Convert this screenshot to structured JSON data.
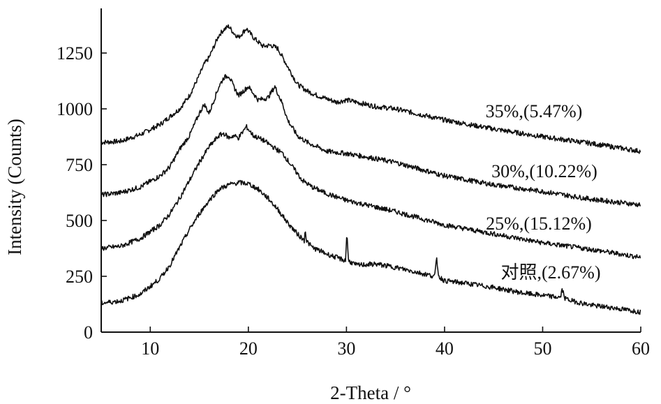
{
  "chart_data": {
    "type": "line",
    "xlabel": "2-Theta / °",
    "ylabel": "Intensity (Counts)",
    "xlim": [
      5,
      60
    ],
    "ylim": [
      0,
      1450
    ],
    "x_ticks": [
      10,
      20,
      30,
      40,
      50,
      60
    ],
    "y_ticks": [
      0,
      250,
      500,
      750,
      1000,
      1250
    ],
    "grid": false,
    "series": [
      {
        "name": "35%,(5.47%)",
        "color": "#111111",
        "x": [
          5,
          7,
          9,
          11,
          13,
          14,
          15,
          15.5,
          16,
          17,
          17.5,
          18,
          18.5,
          19,
          19.8,
          20.5,
          21.5,
          22.3,
          23,
          24,
          25,
          26,
          27,
          28,
          29,
          30,
          31,
          33,
          35,
          40,
          45,
          50,
          55,
          60
        ],
        "y": [
          850,
          855,
          885,
          930,
          1000,
          1060,
          1150,
          1200,
          1230,
          1330,
          1355,
          1370,
          1340,
          1320,
          1360,
          1320,
          1280,
          1285,
          1270,
          1190,
          1110,
          1080,
          1060,
          1045,
          1030,
          1040,
          1030,
          1010,
          1000,
          950,
          910,
          875,
          845,
          810
        ]
      },
      {
        "name": "30%,(10.22%)",
        "color": "#111111",
        "x": [
          5,
          7,
          9,
          11,
          12,
          13,
          14,
          15,
          15.5,
          16,
          17,
          17.5,
          18,
          18.5,
          19,
          20,
          21,
          22,
          22.7,
          23.5,
          24,
          25,
          26,
          27,
          28,
          30,
          32,
          35,
          40,
          45,
          50,
          55,
          60
        ],
        "y": [
          615,
          625,
          650,
          700,
          740,
          820,
          880,
          980,
          1020,
          980,
          1100,
          1140,
          1150,
          1100,
          1060,
          1100,
          1040,
          1050,
          1100,
          1020,
          950,
          880,
          850,
          830,
          810,
          800,
          785,
          760,
          700,
          660,
          630,
          595,
          570
        ]
      },
      {
        "name": "25%,(15.12%)",
        "color": "#111111",
        "x": [
          5,
          7,
          9,
          11,
          12,
          13,
          14,
          15,
          16,
          17,
          17.5,
          18,
          18.5,
          19,
          19.8,
          20.5,
          21.5,
          22.5,
          23.5,
          24.5,
          25.5,
          26.5,
          28,
          30,
          32,
          35,
          40,
          45,
          50,
          55,
          60
        ],
        "y": [
          375,
          385,
          420,
          480,
          530,
          600,
          680,
          760,
          830,
          880,
          890,
          870,
          880,
          870,
          920,
          880,
          860,
          830,
          800,
          740,
          680,
          650,
          620,
          590,
          570,
          540,
          480,
          440,
          400,
          370,
          335
        ]
      },
      {
        "name": "对照,(2.67%)",
        "color": "#111111",
        "x": [
          5,
          7,
          9,
          11,
          12,
          13,
          14,
          15,
          16,
          17,
          18,
          19,
          20,
          21,
          22,
          23,
          24,
          25,
          25.7,
          25.8,
          25.9,
          26.5,
          28,
          29.9,
          30.05,
          30.2,
          31,
          33,
          35,
          37,
          39,
          39.2,
          39.4,
          40,
          42,
          45,
          48,
          51.8,
          52,
          52.3,
          53,
          55,
          57,
          60
        ],
        "y": [
          130,
          140,
          170,
          240,
          300,
          380,
          460,
          530,
          590,
          640,
          660,
          670,
          665,
          640,
          600,
          550,
          490,
          440,
          410,
          470,
          410,
          380,
          350,
          320,
          450,
          320,
          300,
          305,
          290,
          270,
          250,
          330,
          250,
          230,
          220,
          200,
          175,
          155,
          190,
          150,
          140,
          120,
          110,
          90
        ]
      }
    ]
  }
}
